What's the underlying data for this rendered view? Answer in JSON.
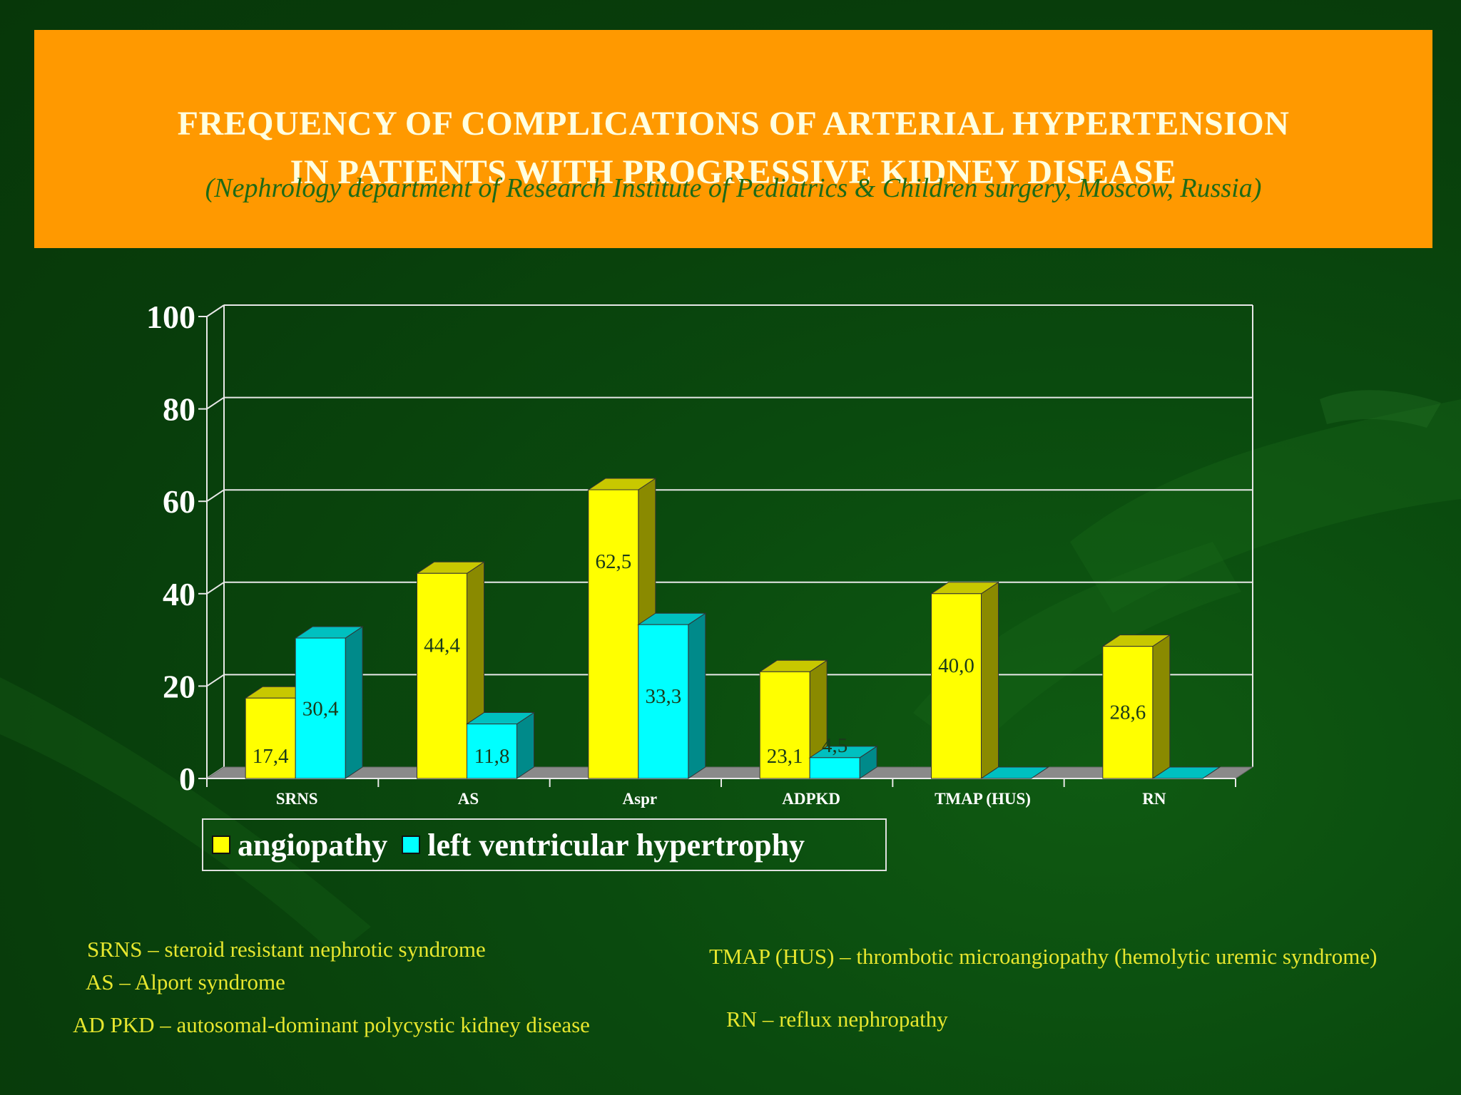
{
  "title": {
    "line1": "FREQUENCY  OF COMPLICATIONS OF ARTERIAL HYPERTENSION",
    "line2": "IN PATIENTS WITH PROGRESSIVE KIDNEY DISEASE",
    "subtitle": "(Nephrology department of Research Institute of Pediatrics & Children surgery, Moscow,  Russia)"
  },
  "chart_data": {
    "type": "bar",
    "categories": [
      "SRNS",
      "AS",
      "Aspr",
      "ADPKD",
      "TMAP (HUS)",
      "RN"
    ],
    "series": [
      {
        "name": "angiopathy",
        "values": [
          17.4,
          44.4,
          62.5,
          23.1,
          40.0,
          28.6
        ],
        "labels": [
          "17,4",
          "44,4",
          "62,5",
          "23,1",
          "40,0",
          "28,6"
        ]
      },
      {
        "name": "left ventricular hypertrophy",
        "values": [
          30.4,
          11.8,
          33.3,
          4.5,
          0,
          0
        ],
        "labels": [
          "30,4",
          "11,8",
          "33,3",
          "4,5",
          "",
          ""
        ]
      }
    ],
    "yticks": [
      "0",
      "20",
      "40",
      "60",
      "80",
      "100"
    ],
    "ylim": [
      0,
      100
    ],
    "grid": true,
    "legend_position": "bottom-left",
    "style": "3d"
  },
  "colors": {
    "angiopathy": "#ffff00",
    "lvh": "#00ffff",
    "title_bg": "#ff9900",
    "title_text": "#ffffe0",
    "subtitle_text": "#1e6a16",
    "note_text": "#e6e62e",
    "data_label": "#1a3a1a"
  },
  "notes": [
    "SRNS – steroid resistant nephrotic syndrome",
    "AS – Alport syndrome",
    "AD PKD – autosomal-dominant polycystic kidney disease",
    "TMAP (HUS) – thrombotic microangiopathy (hemolytic uremic syndrome)",
    "RN – reflux nephropathy"
  ]
}
